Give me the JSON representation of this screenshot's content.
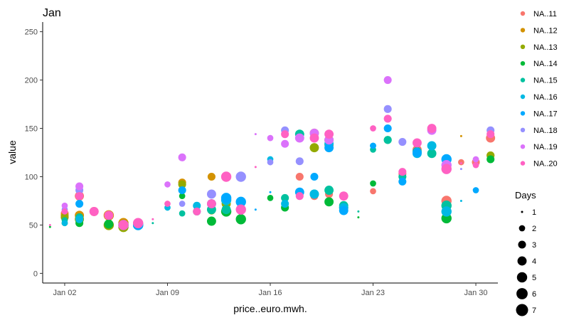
{
  "chart_data": {
    "type": "scatter",
    "title": "Jan",
    "xlabel": "price..euro.mwh.",
    "ylabel": "value",
    "x_ticks": [
      "Jan 02",
      "Jan 09",
      "Jan 16",
      "Jan 23",
      "Jan 30"
    ],
    "y_ticks": [
      "0",
      "50",
      "100",
      "150",
      "200",
      "250"
    ],
    "xlim": [
      0.5,
      31.5
    ],
    "ylim": [
      -10,
      260
    ],
    "grid": false,
    "color_legend": {
      "title": "",
      "placement": "right",
      "entries": [
        {
          "name": "NA..11",
          "color": "#F8766D"
        },
        {
          "name": "NA..12",
          "color": "#D39200"
        },
        {
          "name": "NA..13",
          "color": "#93AA00"
        },
        {
          "name": "NA..14",
          "color": "#00BA38"
        },
        {
          "name": "NA..15",
          "color": "#00C19F"
        },
        {
          "name": "NA..16",
          "color": "#00B9E3"
        },
        {
          "name": "NA..17",
          "color": "#00A9FF"
        },
        {
          "name": "NA..18",
          "color": "#9590FF"
        },
        {
          "name": "NA..19",
          "color": "#DB72FB"
        },
        {
          "name": "NA..20",
          "color": "#FF61C3"
        }
      ]
    },
    "size_legend": {
      "title": "Days",
      "placement": "right",
      "entries": [
        1,
        2,
        3,
        4,
        5,
        6,
        7
      ]
    },
    "series": [
      {
        "name": "NA..11",
        "x": [
          2,
          3,
          4,
          18,
          19,
          20,
          21,
          23,
          25,
          26,
          28,
          29,
          30,
          31
        ],
        "y": [
          62,
          80,
          64,
          100,
          80,
          82,
          80,
          85,
          103,
          128,
          75,
          115,
          115,
          140
        ],
        "size": [
          3,
          4,
          4,
          3,
          3,
          3,
          3,
          2,
          3,
          4,
          5,
          2,
          3,
          4
        ]
      },
      {
        "name": "NA..12",
        "x": [
          2,
          3,
          5,
          6,
          10,
          12,
          13,
          19,
          20,
          29,
          31
        ],
        "y": [
          60,
          60,
          60,
          52,
          94,
          100,
          78,
          145,
          133,
          142,
          122
        ],
        "size": [
          3,
          4,
          5,
          5,
          3,
          3,
          4,
          4,
          4,
          1,
          3
        ]
      },
      {
        "name": "NA..13",
        "x": [
          2,
          3,
          5,
          6,
          10,
          12,
          13,
          19,
          20,
          31
        ],
        "y": [
          58,
          56,
          50,
          48,
          92,
          65,
          72,
          130,
          138,
          122
        ],
        "size": [
          3,
          4,
          5,
          5,
          3,
          3,
          4,
          4,
          4,
          3
        ]
      },
      {
        "name": "NA..14",
        "x": [
          1,
          2,
          3,
          5,
          7,
          10,
          12,
          13,
          14,
          16,
          17,
          20,
          21,
          22,
          23,
          24,
          28,
          31
        ],
        "y": [
          48,
          52,
          52,
          51,
          51,
          80,
          54,
          64,
          56,
          78,
          68,
          74,
          68,
          58,
          93,
          138,
          57,
          118
        ],
        "size": [
          1,
          2,
          3,
          4,
          5,
          2,
          4,
          5,
          5,
          2,
          3,
          4,
          4,
          1,
          2,
          3,
          5,
          3
        ]
      },
      {
        "name": "NA..15",
        "x": [
          2,
          3,
          6,
          7,
          8,
          10,
          11,
          12,
          13,
          14,
          17,
          18,
          19,
          20,
          21,
          22,
          23,
          24,
          25,
          26,
          27,
          28
        ],
        "y": [
          55,
          58,
          50,
          50,
          52,
          62,
          64,
          66,
          66,
          72,
          78,
          144,
          82,
          86,
          70,
          64,
          128,
          138,
          100,
          126,
          124,
          70
        ],
        "size": [
          2,
          3,
          5,
          5,
          1,
          2,
          3,
          4,
          4,
          3,
          3,
          4,
          4,
          4,
          4,
          1,
          2,
          3,
          3,
          4,
          4,
          5
        ]
      },
      {
        "name": "NA..16",
        "x": [
          2,
          3,
          7,
          9,
          11,
          12,
          13,
          16,
          17,
          18,
          19,
          20,
          21,
          23,
          26,
          27,
          28,
          29
        ],
        "y": [
          52,
          56,
          50,
          68,
          70,
          72,
          76,
          118,
          72,
          84,
          82,
          134,
          68,
          132,
          124,
          132,
          64,
          75
        ],
        "size": [
          2,
          3,
          5,
          2,
          3,
          4,
          5,
          2,
          3,
          3,
          4,
          4,
          4,
          2,
          4,
          4,
          5,
          1
        ]
      },
      {
        "name": "NA..17",
        "x": [
          3,
          6,
          7,
          10,
          13,
          14,
          15,
          16,
          18,
          19,
          20,
          21,
          23,
          24,
          25,
          26,
          28,
          30
        ],
        "y": [
          72,
          50,
          50,
          86,
          78,
          74,
          66,
          84,
          84,
          100,
          130,
          65,
          132,
          150,
          95,
          125,
          118,
          86
        ],
        "size": [
          3,
          5,
          5,
          3,
          5,
          5,
          1,
          1,
          4,
          3,
          4,
          4,
          2,
          3,
          3,
          4,
          5,
          2
        ]
      },
      {
        "name": "NA..18",
        "x": [
          2,
          3,
          10,
          12,
          14,
          16,
          17,
          18,
          24,
          25,
          29,
          31
        ],
        "y": [
          66,
          86,
          72,
          82,
          100,
          115,
          148,
          116,
          170,
          136,
          108,
          148
        ],
        "size": [
          2,
          3,
          2,
          4,
          5,
          2,
          3,
          3,
          3,
          3,
          1,
          3
        ]
      },
      {
        "name": "NA..19",
        "x": [
          2,
          3,
          9,
          10,
          15,
          16,
          17,
          18,
          19,
          20,
          24,
          27,
          28,
          30
        ],
        "y": [
          70,
          90,
          92,
          120,
          144,
          140,
          134,
          140,
          145,
          138,
          200,
          148,
          112,
          118
        ],
        "size": [
          2,
          3,
          2,
          3,
          1,
          2,
          3,
          4,
          4,
          4,
          3,
          4,
          5,
          2
        ]
      },
      {
        "name": "NA..20",
        "x": [
          1,
          2,
          3,
          4,
          5,
          6,
          7,
          8,
          9,
          11,
          12,
          13,
          14,
          15,
          17,
          18,
          19,
          20,
          21,
          23,
          24,
          25,
          26,
          27,
          28,
          29,
          30,
          31
        ],
        "y": [
          50,
          64,
          80,
          64,
          60,
          50,
          52,
          56,
          72,
          64,
          72,
          100,
          66,
          110,
          144,
          80,
          140,
          144,
          80,
          150,
          160,
          105,
          135,
          150,
          108,
          114,
          112,
          144
        ],
        "size": [
          1,
          2,
          3,
          4,
          4,
          5,
          5,
          1,
          2,
          3,
          4,
          5,
          5,
          1,
          3,
          3,
          4,
          4,
          4,
          2,
          3,
          3,
          4,
          4,
          5,
          1,
          2,
          3
        ]
      }
    ]
  }
}
